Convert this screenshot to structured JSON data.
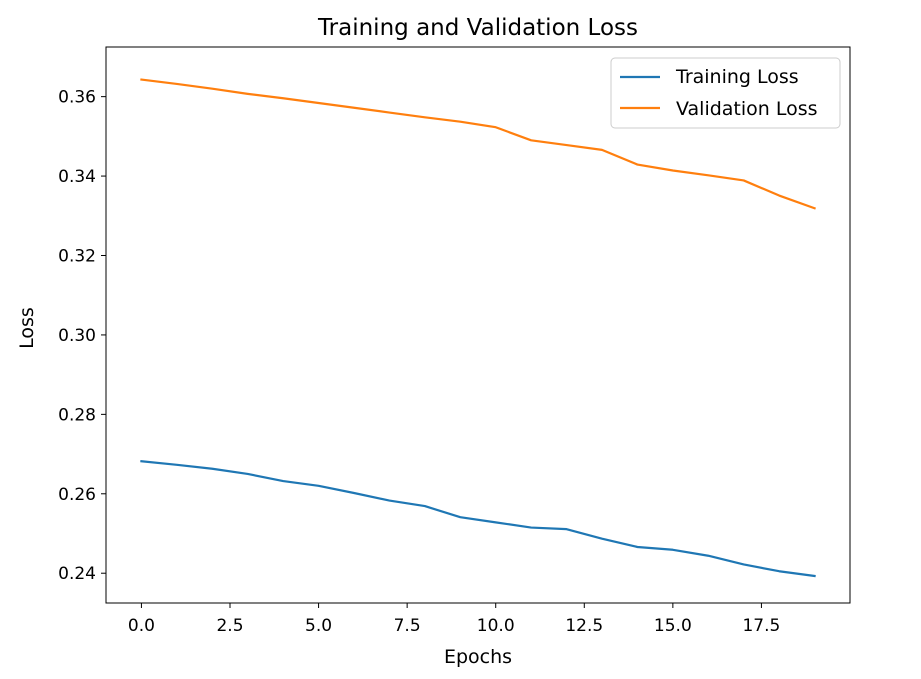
{
  "chart_data": {
    "type": "line",
    "title": "Training and Validation Loss",
    "xlabel": "Epochs",
    "ylabel": "Loss",
    "xlim": [
      -1.0,
      20.0
    ],
    "ylim": [
      0.2325,
      0.3725
    ],
    "xticks": [
      0.0,
      2.5,
      5.0,
      7.5,
      10.0,
      12.5,
      15.0,
      17.5
    ],
    "xtick_labels": [
      "0.0",
      "2.5",
      "5.0",
      "7.5",
      "10.0",
      "12.5",
      "15.0",
      "17.5"
    ],
    "yticks": [
      0.24,
      0.26,
      0.28,
      0.3,
      0.32,
      0.34,
      0.36
    ],
    "ytick_labels": [
      "0.24",
      "0.26",
      "0.28",
      "0.30",
      "0.32",
      "0.34",
      "0.36"
    ],
    "grid": false,
    "legend_position": "top-right",
    "x": [
      0,
      1,
      2,
      3,
      4,
      5,
      6,
      7,
      8,
      9,
      10,
      11,
      12,
      13,
      14,
      15,
      16,
      17,
      18,
      19
    ],
    "series": [
      {
        "name": "Training Loss",
        "color": "#1f77b4",
        "values": [
          0.2682,
          0.2673,
          0.2663,
          0.265,
          0.2632,
          0.262,
          0.2602,
          0.2583,
          0.2569,
          0.2541,
          0.2528,
          0.2515,
          0.2511,
          0.2487,
          0.2466,
          0.2459,
          0.2444,
          0.2422,
          0.2405,
          0.2393
        ]
      },
      {
        "name": "Validation Loss",
        "color": "#ff7f0e",
        "values": [
          0.3643,
          0.3632,
          0.362,
          0.3607,
          0.3596,
          0.3584,
          0.3572,
          0.356,
          0.3548,
          0.3537,
          0.3523,
          0.349,
          0.3478,
          0.3466,
          0.3429,
          0.3414,
          0.3402,
          0.3389,
          0.3351,
          0.3319
        ]
      }
    ]
  }
}
